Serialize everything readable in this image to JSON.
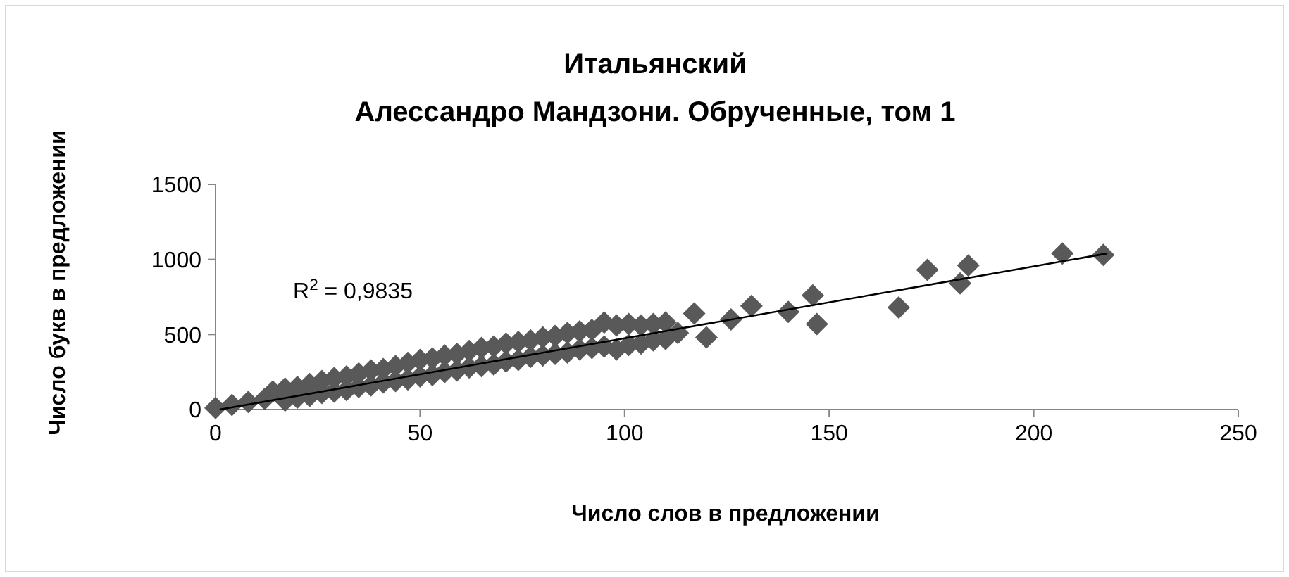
{
  "chart_data": {
    "type": "scatter",
    "title": "Итальянский",
    "subtitle": "Алессандро Мандзони. Обрученные, том 1",
    "xlabel": "Число слов в предложении",
    "ylabel": "Число букв в предложении",
    "annotations": [
      "R$^{2}$ = 0,9835"
    ],
    "xlim": [
      0,
      250
    ],
    "ylim": [
      0,
      1500
    ],
    "xticks": [
      0,
      50,
      100,
      150,
      200,
      250
    ],
    "yticks": [
      0,
      500,
      1000,
      1500
    ],
    "series": [
      {
        "color": "#595959",
        "marker": "diamond",
        "x": [
          0,
          4,
          8,
          12,
          14,
          17,
          17,
          20,
          20,
          23,
          23,
          26,
          26,
          29,
          29,
          32,
          32,
          35,
          35,
          38,
          38,
          41,
          41,
          44,
          44,
          47,
          47,
          50,
          50,
          53,
          53,
          56,
          56,
          59,
          59,
          62,
          62,
          65,
          65,
          68,
          68,
          71,
          71,
          74,
          74,
          77,
          77,
          80,
          80,
          83,
          83,
          86,
          86,
          89,
          89,
          92,
          92,
          95,
          95,
          98,
          98,
          101,
          101,
          104,
          104,
          107,
          107,
          110,
          110,
          113,
          117,
          120,
          126,
          131,
          140,
          146,
          147,
          167,
          174,
          182,
          184,
          207,
          217
        ],
        "values": [
          10,
          30,
          50,
          70,
          120,
          60,
          140,
          80,
          150,
          90,
          170,
          110,
          190,
          120,
          210,
          130,
          220,
          150,
          240,
          160,
          260,
          180,
          270,
          190,
          290,
          200,
          310,
          220,
          330,
          230,
          340,
          250,
          360,
          260,
          370,
          280,
          390,
          290,
          410,
          300,
          420,
          320,
          440,
          330,
          450,
          350,
          460,
          360,
          480,
          370,
          490,
          380,
          510,
          400,
          520,
          410,
          530,
          420,
          580,
          400,
          560,
          430,
          570,
          440,
          560,
          460,
          570,
          470,
          580,
          510,
          640,
          480,
          600,
          690,
          650,
          760,
          570,
          680,
          930,
          840,
          960,
          1040,
          1030
        ]
      },
      {
        "type": "line",
        "color": "#000000",
        "x": [
          1,
          218
        ],
        "values": [
          0,
          1040
        ]
      }
    ]
  }
}
